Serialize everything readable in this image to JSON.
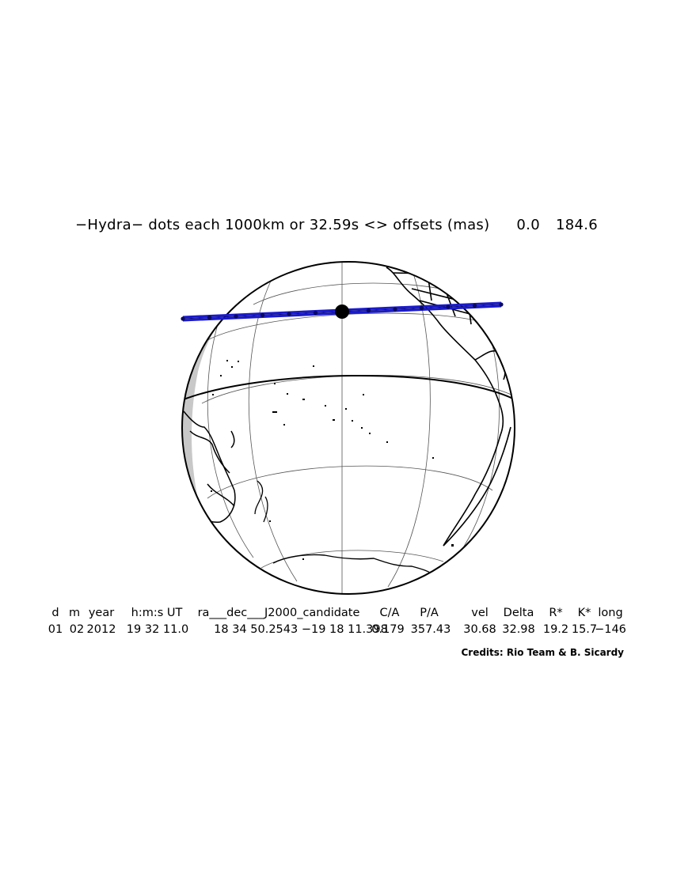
{
  "title": {
    "object": "−Hydra−",
    "caption": "dots each 1000km or 32.59s <> offsets (mas)",
    "offset_ra": "0.0",
    "offset_dec": "184.6"
  },
  "table": {
    "headers": [
      "d",
      "m",
      "year",
      "h:m:s UT",
      "ra___dec___J2000_candidate",
      "C/A",
      "P/A",
      "vel",
      "Delta",
      "R*",
      "K*",
      "long"
    ],
    "values": [
      "01",
      "02",
      "2012",
      "19 32 11.0",
      "18 34 50.2543 −19 18 11.398",
      "0.179",
      "357.43",
      "30.68",
      "32.98",
      "19.2",
      "15.7",
      "−146"
    ]
  },
  "credits": "Credits: Rio Team & B. Sicardy",
  "colors": {
    "globe_outline": "#000000",
    "night_shade": "#c8c8c8",
    "occultation_path": "#1a1acc",
    "coastline": "#000000"
  }
}
